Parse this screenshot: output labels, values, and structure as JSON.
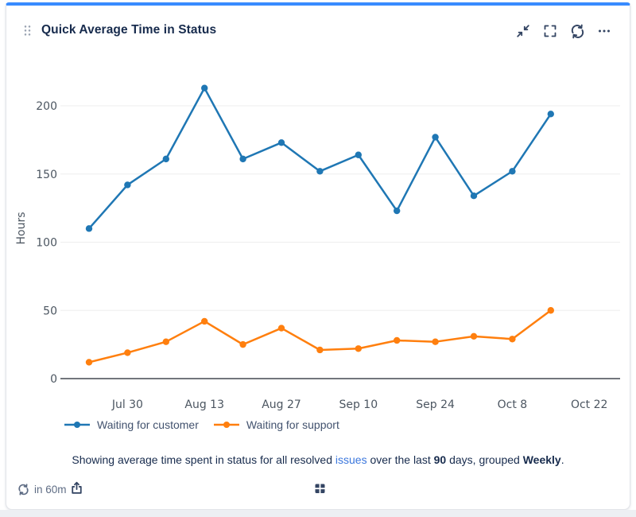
{
  "card": {
    "title": "Quick Average Time in Status",
    "accent_color": "#388bff"
  },
  "icons": {
    "header": [
      "drag-handle",
      "collapse",
      "fullscreen",
      "refresh",
      "more-options"
    ],
    "footer_bar": [
      "refresh",
      "share",
      "grid"
    ]
  },
  "chart_data": {
    "type": "line",
    "title": "Quick Average Time in Status",
    "ylabel": "Hours",
    "y_ticks": [
      0,
      50,
      100,
      150,
      200
    ],
    "ylim": [
      0,
      220
    ],
    "grid": true,
    "legend_position": "bottom-left",
    "x_tick_labels": [
      "Jul 30",
      "Aug 13",
      "Aug 27",
      "Sep 10",
      "Sep 24",
      "Oct 8",
      "Oct 22"
    ],
    "points_per_series": 13,
    "series": [
      {
        "name": "Waiting for customer",
        "color": "#1f77b4",
        "values": [
          110,
          142,
          161,
          213,
          161,
          173,
          152,
          164,
          123,
          177,
          134,
          152,
          194
        ]
      },
      {
        "name": "Waiting for support",
        "color": "#ff7f0e",
        "values": [
          12,
          19,
          27,
          42,
          25,
          37,
          21,
          22,
          28,
          27,
          31,
          29,
          50
        ]
      }
    ]
  },
  "footer": {
    "link_color": "#3b77dd",
    "segments": [
      {
        "text": "Showing average time spent in status for all resolved "
      },
      {
        "text": "issues",
        "style": "link"
      },
      {
        "text": " over the last "
      },
      {
        "text": "90",
        "style": "bold"
      },
      {
        "text": " days, grouped "
      },
      {
        "text": "Weekly",
        "style": "bold"
      },
      {
        "text": "."
      }
    ]
  },
  "status_bar": {
    "refresh_in": "in 60m"
  }
}
